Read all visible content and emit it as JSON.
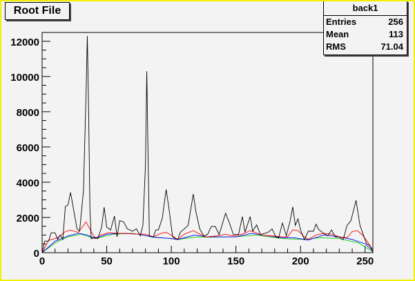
{
  "title_button": "Root File",
  "stats": {
    "name": "back1",
    "rows": [
      {
        "label": "Entries",
        "value": "256"
      },
      {
        "label": "Mean",
        "value": "113"
      },
      {
        "label": "RMS",
        "value": "71.04"
      }
    ]
  },
  "chart_data": {
    "type": "line",
    "xlim": [
      0,
      256
    ],
    "ylim": [
      0,
      12500
    ],
    "x_ticks": [
      "0",
      "50",
      "100",
      "150",
      "200",
      "250"
    ],
    "y_ticks": [
      "0",
      "2000",
      "4000",
      "6000",
      "8000",
      "10000",
      "12000"
    ],
    "grid": false,
    "series": [
      {
        "color": "#000000",
        "points": [
          [
            0,
            0
          ],
          [
            2,
            660
          ],
          [
            5,
            660
          ],
          [
            7,
            1130
          ],
          [
            10,
            1130
          ],
          [
            12,
            760
          ],
          [
            14,
            1000
          ],
          [
            16,
            760
          ],
          [
            18,
            2630
          ],
          [
            20,
            2700
          ],
          [
            22,
            3420
          ],
          [
            24,
            2600
          ],
          [
            27,
            1350
          ],
          [
            29,
            1220
          ],
          [
            32,
            3500
          ],
          [
            34,
            9000
          ],
          [
            35,
            12300
          ],
          [
            36,
            8000
          ],
          [
            37,
            2500
          ],
          [
            38,
            790
          ],
          [
            41,
            890
          ],
          [
            43,
            790
          ],
          [
            46,
            1420
          ],
          [
            48,
            2580
          ],
          [
            50,
            1450
          ],
          [
            53,
            1290
          ],
          [
            56,
            2080
          ],
          [
            58,
            900
          ],
          [
            60,
            1820
          ],
          [
            63,
            1750
          ],
          [
            66,
            1350
          ],
          [
            70,
            1220
          ],
          [
            73,
            1350
          ],
          [
            76,
            960
          ],
          [
            78,
            1550
          ],
          [
            80,
            5000
          ],
          [
            81,
            10300
          ],
          [
            82,
            5500
          ],
          [
            83,
            960
          ],
          [
            86,
            890
          ],
          [
            88,
            1290
          ],
          [
            90,
            1290
          ],
          [
            93,
            1950
          ],
          [
            96,
            3590
          ],
          [
            98,
            2600
          ],
          [
            101,
            890
          ],
          [
            105,
            740
          ],
          [
            107,
            1160
          ],
          [
            110,
            1350
          ],
          [
            113,
            1550
          ],
          [
            117,
            3330
          ],
          [
            119,
            2340
          ],
          [
            122,
            1350
          ],
          [
            125,
            960
          ],
          [
            128,
            1030
          ],
          [
            131,
            1490
          ],
          [
            134,
            1490
          ],
          [
            137,
            1030
          ],
          [
            142,
            2240
          ],
          [
            145,
            1680
          ],
          [
            148,
            1030
          ],
          [
            152,
            1030
          ],
          [
            155,
            2050
          ],
          [
            157,
            1160
          ],
          [
            161,
            2050
          ],
          [
            163,
            1220
          ],
          [
            166,
            1580
          ],
          [
            169,
            1030
          ],
          [
            172,
            1090
          ],
          [
            175,
            1160
          ],
          [
            178,
            1350
          ],
          [
            181,
            890
          ],
          [
            183,
            830
          ],
          [
            186,
            1680
          ],
          [
            189,
            960
          ],
          [
            192,
            1820
          ],
          [
            194,
            2600
          ],
          [
            196,
            1550
          ],
          [
            198,
            1920
          ],
          [
            200,
            1290
          ],
          [
            203,
            740
          ],
          [
            206,
            1220
          ],
          [
            210,
            1220
          ],
          [
            212,
            1620
          ],
          [
            214,
            1320
          ],
          [
            218,
            1090
          ],
          [
            221,
            960
          ],
          [
            224,
            1290
          ],
          [
            227,
            890
          ],
          [
            230,
            890
          ],
          [
            233,
            740
          ],
          [
            236,
            1550
          ],
          [
            239,
            1820
          ],
          [
            243,
            2970
          ],
          [
            246,
            1550
          ],
          [
            251,
            530
          ],
          [
            254,
            370
          ],
          [
            256,
            0
          ]
        ]
      },
      {
        "color": "#ff0000",
        "points": [
          [
            0,
            0
          ],
          [
            5,
            700
          ],
          [
            12,
            850
          ],
          [
            18,
            1200
          ],
          [
            22,
            1280
          ],
          [
            28,
            1150
          ],
          [
            34,
            1750
          ],
          [
            38,
            1200
          ],
          [
            41,
            800
          ],
          [
            45,
            1000
          ],
          [
            52,
            1150
          ],
          [
            58,
            1100
          ],
          [
            65,
            1100
          ],
          [
            75,
            1050
          ],
          [
            80,
            1050
          ],
          [
            86,
            900
          ],
          [
            92,
            1100
          ],
          [
            96,
            1150
          ],
          [
            100,
            1000
          ],
          [
            105,
            750
          ],
          [
            110,
            1050
          ],
          [
            117,
            1250
          ],
          [
            122,
            1050
          ],
          [
            127,
            900
          ],
          [
            135,
            950
          ],
          [
            142,
            1050
          ],
          [
            148,
            950
          ],
          [
            155,
            1050
          ],
          [
            161,
            1250
          ],
          [
            165,
            1150
          ],
          [
            170,
            1000
          ],
          [
            178,
            950
          ],
          [
            186,
            900
          ],
          [
            190,
            900
          ],
          [
            194,
            1300
          ],
          [
            198,
            1250
          ],
          [
            203,
            900
          ],
          [
            206,
            750
          ],
          [
            212,
            1000
          ],
          [
            218,
            1100
          ],
          [
            224,
            1050
          ],
          [
            230,
            900
          ],
          [
            236,
            850
          ],
          [
            240,
            1200
          ],
          [
            244,
            1250
          ],
          [
            248,
            1000
          ],
          [
            252,
            600
          ],
          [
            256,
            150
          ]
        ]
      },
      {
        "color": "#0000ff",
        "points": [
          [
            0,
            0
          ],
          [
            10,
            650
          ],
          [
            20,
            950
          ],
          [
            28,
            1100
          ],
          [
            35,
            1000
          ],
          [
            41,
            800
          ],
          [
            50,
            1050
          ],
          [
            60,
            1100
          ],
          [
            75,
            1050
          ],
          [
            86,
            880
          ],
          [
            100,
            800
          ],
          [
            105,
            750
          ],
          [
            118,
            1000
          ],
          [
            127,
            900
          ],
          [
            150,
            900
          ],
          [
            162,
            1100
          ],
          [
            170,
            1000
          ],
          [
            186,
            850
          ],
          [
            195,
            850
          ],
          [
            203,
            750
          ],
          [
            206,
            720
          ],
          [
            218,
            1000
          ],
          [
            230,
            900
          ],
          [
            240,
            750
          ],
          [
            250,
            500
          ],
          [
            256,
            100
          ]
        ]
      },
      {
        "color": "#00cc00",
        "points": [
          [
            0,
            0
          ],
          [
            10,
            550
          ],
          [
            20,
            900
          ],
          [
            30,
            1050
          ],
          [
            41,
            800
          ],
          [
            55,
            1050
          ],
          [
            70,
            1100
          ],
          [
            86,
            900
          ],
          [
            105,
            750
          ],
          [
            120,
            900
          ],
          [
            127,
            880
          ],
          [
            150,
            900
          ],
          [
            165,
            1000
          ],
          [
            186,
            800
          ],
          [
            203,
            750
          ],
          [
            215,
            850
          ],
          [
            230,
            800
          ],
          [
            245,
            550
          ],
          [
            256,
            50
          ]
        ]
      }
    ]
  }
}
